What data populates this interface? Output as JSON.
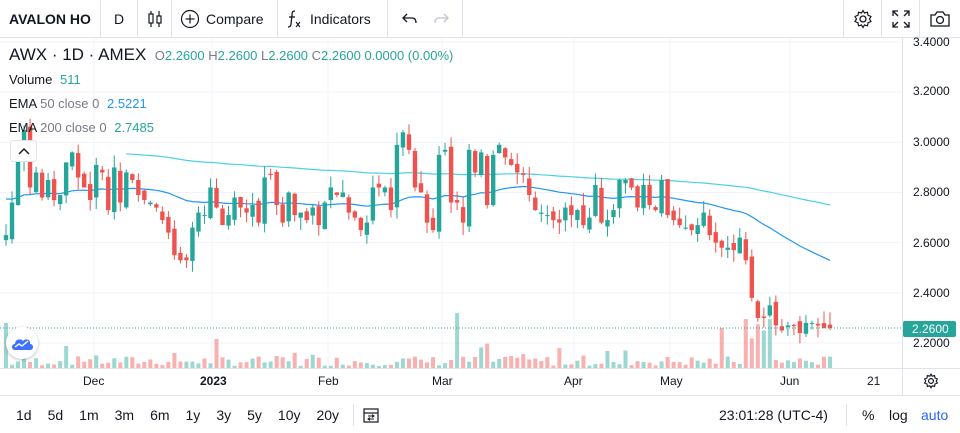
{
  "toolbar": {
    "symbol": "AVALON HO",
    "interval": "D",
    "compare_label": "Compare",
    "indicators_label": "Indicators"
  },
  "legend": {
    "title": "AWX · 1D · AMEX",
    "o_label": "O",
    "o_value": "2.2600",
    "h_label": "H",
    "h_value": "2.2600",
    "l_label": "L",
    "l_value": "2.2600",
    "c_label": "C",
    "c_value": "2.2600",
    "change": "0.0000 (0.00%)",
    "volume_label": "Volume",
    "volume_value": "511",
    "ema50_label": "EMA",
    "ema50_params": "50 close 0",
    "ema50_value": "2.5221",
    "ema200_label": "EMA",
    "ema200_params": "200 close 0",
    "ema200_value": "2.7485"
  },
  "price_axis": {
    "ticks": [
      "3.4000",
      "3.2000",
      "3.0000",
      "2.8000",
      "2.6000",
      "2.4000",
      "2.2000"
    ],
    "last_price": "2.2600"
  },
  "time_axis": {
    "labels": [
      "Dec",
      "2023",
      "Feb",
      "Mar",
      "Apr",
      "May",
      "Jun",
      "21"
    ]
  },
  "bottom": {
    "ranges": [
      "1d",
      "5d",
      "1m",
      "3m",
      "6m",
      "1y",
      "3y",
      "5y",
      "10y",
      "20y"
    ],
    "time": "23:01:28 (UTC-4)",
    "pct": "%",
    "log": "log",
    "auto": "auto"
  },
  "colors": {
    "up": "#26a69a",
    "down": "#ef5350",
    "ema50": "#2196f3",
    "ema200": "#4dd0e1",
    "accent": "#2962ff"
  },
  "chart_data": {
    "type": "candlestick",
    "ylim": [
      2.15,
      3.42
    ],
    "y_ticks": [
      2.2,
      2.4,
      2.6,
      2.8,
      3.0,
      3.2,
      3.4
    ],
    "x_labels": [
      "Dec",
      "2023",
      "Feb",
      "Mar",
      "Apr",
      "May",
      "Jun",
      "21"
    ],
    "close": [
      2.63,
      2.76,
      2.94,
      3.05,
      2.82,
      2.88,
      2.78,
      2.85,
      2.77,
      2.79,
      2.92,
      2.96,
      2.86,
      2.82,
      2.77,
      2.91,
      2.88,
      2.73,
      2.9,
      2.76,
      2.88,
      2.85,
      2.79,
      2.77,
      2.76,
      2.74,
      2.69,
      2.64,
      2.55,
      2.53,
      2.53,
      2.66,
      2.72,
      2.71,
      2.82,
      2.74,
      2.67,
      2.71,
      2.78,
      2.74,
      2.72,
      2.75,
      2.68,
      2.86,
      2.87,
      2.75,
      2.68,
      2.8,
      2.71,
      2.72,
      2.69,
      2.74,
      2.67,
      2.76,
      2.82,
      2.79,
      2.8,
      2.72,
      2.7,
      2.65,
      2.68,
      2.82,
      2.82,
      2.82,
      2.73,
      2.99,
      3.04,
      2.97,
      2.82,
      2.8,
      2.68,
      2.65,
      2.95,
      2.97,
      2.76,
      2.76,
      2.68,
      2.97,
      2.88,
      2.96,
      2.75,
      2.95,
      2.99,
      2.94,
      2.91,
      2.88,
      2.87,
      2.79,
      2.73,
      2.72,
      2.71,
      2.69,
      2.68,
      2.74,
      2.71,
      2.73,
      2.67,
      2.7,
      2.83,
      2.68,
      2.69,
      2.73,
      2.85,
      2.85,
      2.82,
      2.74,
      2.83,
      2.75,
      2.73,
      2.85,
      2.71,
      2.69,
      2.67,
      2.66,
      2.65,
      2.67,
      2.72,
      2.63,
      2.6,
      2.58,
      2.58,
      2.57,
      2.62,
      2.53,
      2.38,
      2.3,
      2.3,
      2.35,
      2.27,
      2.25,
      2.27,
      2.27,
      2.24,
      2.28,
      2.28,
      2.27,
      2.26,
      2.26
    ],
    "ema50_last": 2.5221,
    "ema200_last": 2.7485,
    "last": 2.26
  }
}
